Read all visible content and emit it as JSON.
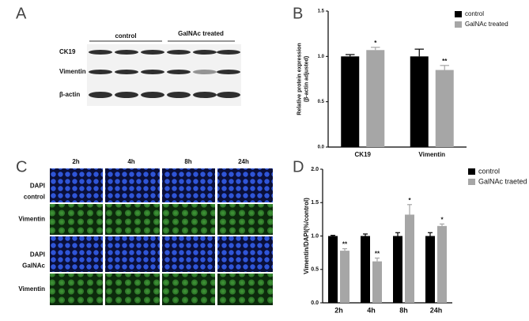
{
  "panel_labels": [
    "A",
    "B",
    "C",
    "D"
  ],
  "blot": {
    "groups": [
      "control",
      "GalNAc treated"
    ],
    "rows": [
      "CK19",
      "Vimentin",
      "β-actin"
    ]
  },
  "imaging": {
    "columns": [
      "2h",
      "4h",
      "8h",
      "24h"
    ],
    "rows": [
      [
        "DAPI",
        "control"
      ],
      [
        "Vimentin"
      ],
      [
        "DAPI",
        "GalNAc"
      ],
      [
        "Vimentin"
      ]
    ]
  },
  "chart_data": [
    {
      "type": "bar",
      "y_label": [
        "Relative protein expression",
        "(β-actin adjusted)"
      ],
      "categories": [
        "CK19",
        "Vimentin"
      ],
      "series": [
        {
          "name": "control",
          "color": "#000000",
          "values": [
            1.0,
            1.0
          ],
          "errors": [
            0.02,
            0.08
          ]
        },
        {
          "name": "GalNAc treated",
          "color": "#a6a6a6",
          "values": [
            1.07,
            0.85
          ],
          "errors": [
            0.03,
            0.05
          ],
          "annotations": [
            "*",
            "**"
          ]
        }
      ],
      "ylim": [
        0,
        1.5
      ],
      "yticks": [
        {
          "value": 0,
          "label": "0.0"
        },
        0.5,
        {
          "value": 1,
          "label": "1.0"
        },
        1.5
      ],
      "legend": "top-right"
    },
    {
      "type": "bar",
      "y_label": [
        "Vimentin/DAPI(%/control)"
      ],
      "categories": [
        "2h",
        "4h",
        "8h",
        "24h"
      ],
      "series": [
        {
          "name": "control",
          "color": "#000000",
          "values": [
            1.0,
            1.0,
            1.0,
            1.0
          ],
          "errors": [
            0.01,
            0.03,
            0.05,
            0.05
          ]
        },
        {
          "name": "GalNAc traeted",
          "color": "#a6a6a6",
          "values": [
            0.78,
            0.62,
            1.32,
            1.15
          ],
          "errors": [
            0.03,
            0.05,
            0.15,
            0.03
          ],
          "annotations": [
            "**",
            "**",
            "*",
            "*"
          ]
        }
      ],
      "ylim": [
        0,
        2
      ],
      "yticks": [
        {
          "value": 0,
          "label": "0.0"
        },
        0.5,
        {
          "value": 1,
          "label": "1.0"
        },
        1.5,
        {
          "value": 2,
          "label": "2.0"
        }
      ],
      "legend": "top-right"
    }
  ]
}
